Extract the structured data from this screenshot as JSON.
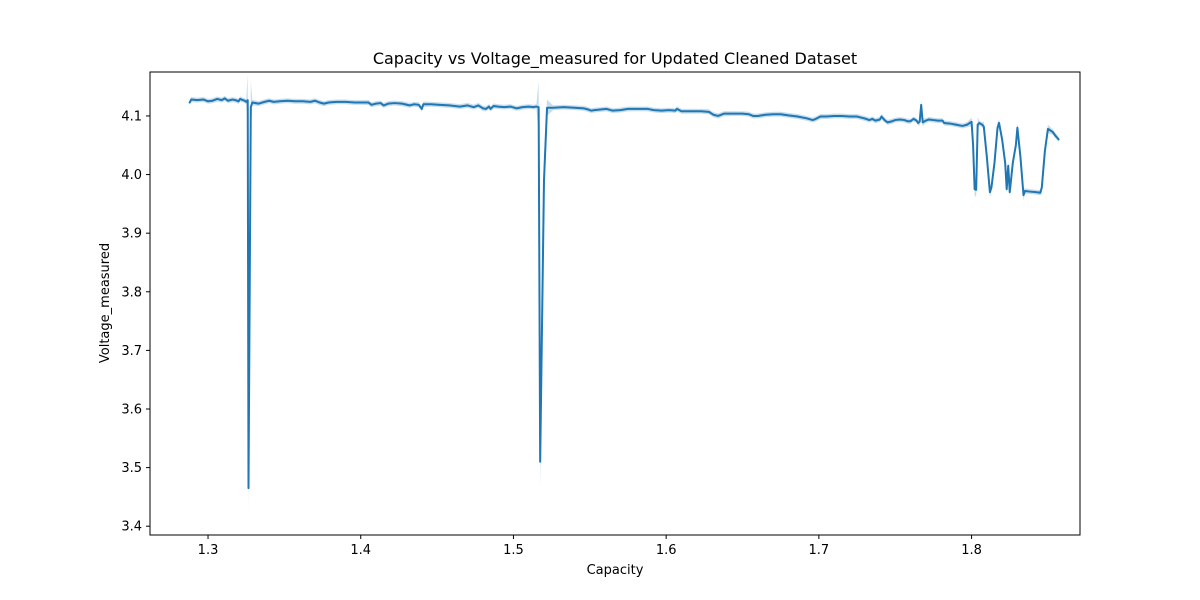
{
  "chart_data": {
    "type": "line",
    "title": "Capacity vs Voltage_measured for Updated Cleaned Dataset",
    "xlabel": "Capacity",
    "ylabel": "Voltage_measured",
    "xlim": [
      1.262,
      1.871
    ],
    "ylim": [
      3.385,
      4.175
    ],
    "xticks": [
      1.3,
      1.4,
      1.5,
      1.6,
      1.7,
      1.8
    ],
    "xtick_labels": [
      "1.3",
      "1.4",
      "1.5",
      "1.6",
      "1.7",
      "1.8"
    ],
    "yticks": [
      3.4,
      3.5,
      3.6,
      3.7,
      3.8,
      3.9,
      4.0,
      4.1
    ],
    "ytick_labels": [
      "3.4",
      "3.5",
      "3.6",
      "3.7",
      "3.8",
      "3.9",
      "4.0",
      "4.1"
    ],
    "grid": false,
    "line_color": "#1f77b4",
    "band_color": "#1f77b4",
    "series": [
      {
        "points": [
          [
            1.288,
            4.123
          ],
          [
            1.289,
            4.128
          ],
          [
            1.293,
            4.127
          ],
          [
            1.297,
            4.128
          ],
          [
            1.3,
            4.125
          ],
          [
            1.303,
            4.126
          ],
          [
            1.306,
            4.129
          ],
          [
            1.309,
            4.127
          ],
          [
            1.311,
            4.13
          ],
          [
            1.313,
            4.126
          ],
          [
            1.316,
            4.128
          ],
          [
            1.318,
            4.127
          ],
          [
            1.32,
            4.125
          ],
          [
            1.321,
            4.129
          ],
          [
            1.323,
            4.127
          ],
          [
            1.324,
            4.126
          ],
          [
            1.325,
            4.124
          ],
          [
            1.326,
            4.127
          ],
          [
            1.3265,
            3.465
          ],
          [
            1.328,
            4.115
          ],
          [
            1.329,
            4.123
          ],
          [
            1.333,
            4.121
          ],
          [
            1.337,
            4.124
          ],
          [
            1.34,
            4.126
          ],
          [
            1.343,
            4.124
          ],
          [
            1.347,
            4.125
          ],
          [
            1.352,
            4.126
          ],
          [
            1.357,
            4.125
          ],
          [
            1.362,
            4.125
          ],
          [
            1.367,
            4.124
          ],
          [
            1.37,
            4.126
          ],
          [
            1.373,
            4.123
          ],
          [
            1.376,
            4.121
          ],
          [
            1.379,
            4.123
          ],
          [
            1.384,
            4.124
          ],
          [
            1.39,
            4.124
          ],
          [
            1.396,
            4.123
          ],
          [
            1.401,
            4.123
          ],
          [
            1.405,
            4.123
          ],
          [
            1.407,
            4.119
          ],
          [
            1.41,
            4.121
          ],
          [
            1.413,
            4.122
          ],
          [
            1.415,
            4.118
          ],
          [
            1.418,
            4.121
          ],
          [
            1.422,
            4.122
          ],
          [
            1.427,
            4.121
          ],
          [
            1.432,
            4.118
          ],
          [
            1.435,
            4.12
          ],
          [
            1.438,
            4.119
          ],
          [
            1.44,
            4.112
          ],
          [
            1.441,
            4.12
          ],
          [
            1.446,
            4.12
          ],
          [
            1.452,
            4.119
          ],
          [
            1.458,
            4.118
          ],
          [
            1.465,
            4.116
          ],
          [
            1.47,
            4.118
          ],
          [
            1.474,
            4.115
          ],
          [
            1.477,
            4.118
          ],
          [
            1.48,
            4.113
          ],
          [
            1.482,
            4.112
          ],
          [
            1.484,
            4.116
          ],
          [
            1.485,
            4.112
          ],
          [
            1.487,
            4.117
          ],
          [
            1.49,
            4.116
          ],
          [
            1.494,
            4.115
          ],
          [
            1.498,
            4.116
          ],
          [
            1.502,
            4.113
          ],
          [
            1.506,
            4.115
          ],
          [
            1.51,
            4.116
          ],
          [
            1.513,
            4.115
          ],
          [
            1.515,
            4.116
          ],
          [
            1.5165,
            4.115
          ],
          [
            1.5175,
            3.51
          ],
          [
            1.52,
            3.99
          ],
          [
            1.522,
            4.114
          ],
          [
            1.526,
            4.114
          ],
          [
            1.533,
            4.115
          ],
          [
            1.54,
            4.114
          ],
          [
            1.546,
            4.113
          ],
          [
            1.549,
            4.111
          ],
          [
            1.551,
            4.109
          ],
          [
            1.553,
            4.11
          ],
          [
            1.557,
            4.111
          ],
          [
            1.561,
            4.112
          ],
          [
            1.565,
            4.109
          ],
          [
            1.57,
            4.11
          ],
          [
            1.575,
            4.112
          ],
          [
            1.582,
            4.112
          ],
          [
            1.588,
            4.112
          ],
          [
            1.592,
            4.11
          ],
          [
            1.597,
            4.109
          ],
          [
            1.602,
            4.11
          ],
          [
            1.606,
            4.109
          ],
          [
            1.607,
            4.112
          ],
          [
            1.61,
            4.108
          ],
          [
            1.617,
            4.108
          ],
          [
            1.623,
            4.108
          ],
          [
            1.628,
            4.107
          ],
          [
            1.631,
            4.102
          ],
          [
            1.634,
            4.1
          ],
          [
            1.638,
            4.104
          ],
          [
            1.645,
            4.104
          ],
          [
            1.65,
            4.104
          ],
          [
            1.654,
            4.103
          ],
          [
            1.657,
            4.1
          ],
          [
            1.66,
            4.1
          ],
          [
            1.665,
            4.102
          ],
          [
            1.67,
            4.103
          ],
          [
            1.675,
            4.103
          ],
          [
            1.68,
            4.101
          ],
          [
            1.686,
            4.099
          ],
          [
            1.692,
            4.096
          ],
          [
            1.696,
            4.093
          ],
          [
            1.698,
            4.095
          ],
          [
            1.701,
            4.099
          ],
          [
            1.705,
            4.099
          ],
          [
            1.71,
            4.1
          ],
          [
            1.715,
            4.1
          ],
          [
            1.72,
            4.099
          ],
          [
            1.725,
            4.099
          ],
          [
            1.728,
            4.097
          ],
          [
            1.731,
            4.095
          ],
          [
            1.733,
            4.093
          ],
          [
            1.735,
            4.095
          ],
          [
            1.737,
            4.092
          ],
          [
            1.74,
            4.094
          ],
          [
            1.741,
            4.099
          ],
          [
            1.743,
            4.093
          ],
          [
            1.745,
            4.089
          ],
          [
            1.748,
            4.091
          ],
          [
            1.75,
            4.093
          ],
          [
            1.753,
            4.094
          ],
          [
            1.756,
            4.093
          ],
          [
            1.758,
            4.091
          ],
          [
            1.76,
            4.091
          ],
          [
            1.762,
            4.095
          ],
          [
            1.764,
            4.092
          ],
          [
            1.765,
            4.088
          ],
          [
            1.766,
            4.09
          ],
          [
            1.767,
            4.119
          ],
          [
            1.768,
            4.089
          ],
          [
            1.77,
            4.092
          ],
          [
            1.772,
            4.094
          ],
          [
            1.775,
            4.093
          ],
          [
            1.778,
            4.092
          ],
          [
            1.781,
            4.092
          ],
          [
            1.782,
            4.088
          ],
          [
            1.786,
            4.087
          ],
          [
            1.79,
            4.085
          ],
          [
            1.794,
            4.083
          ],
          [
            1.797,
            4.085
          ],
          [
            1.8,
            4.09
          ],
          [
            1.801,
            4.05
          ],
          [
            1.802,
            3.975
          ],
          [
            1.803,
            3.974
          ],
          [
            1.804,
            4.085
          ],
          [
            1.805,
            4.088
          ],
          [
            1.807,
            4.085
          ],
          [
            1.808,
            4.082
          ],
          [
            1.81,
            4.03
          ],
          [
            1.812,
            3.97
          ],
          [
            1.813,
            3.978
          ],
          [
            1.815,
            4.02
          ],
          [
            1.817,
            4.08
          ],
          [
            1.818,
            4.088
          ],
          [
            1.82,
            4.06
          ],
          [
            1.822,
            4.02
          ],
          [
            1.823,
            3.975
          ],
          [
            1.824,
            4.015
          ],
          [
            1.825,
            3.97
          ],
          [
            1.827,
            4.02
          ],
          [
            1.829,
            4.05
          ],
          [
            1.83,
            4.08
          ],
          [
            1.832,
            4.03
          ],
          [
            1.834,
            3.965
          ],
          [
            1.835,
            3.972
          ],
          [
            1.838,
            3.971
          ],
          [
            1.842,
            3.97
          ],
          [
            1.845,
            3.969
          ],
          [
            1.846,
            3.978
          ],
          [
            1.848,
            4.04
          ],
          [
            1.85,
            4.078
          ],
          [
            1.853,
            4.073
          ],
          [
            1.855,
            4.066
          ],
          [
            1.857,
            4.06
          ]
        ]
      }
    ]
  }
}
